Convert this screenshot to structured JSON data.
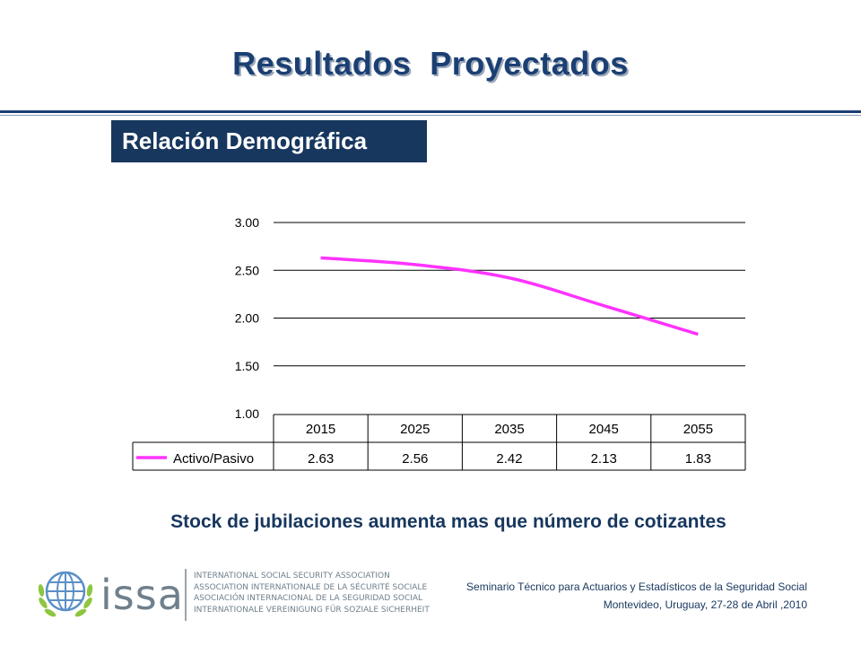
{
  "slide": {
    "title": "Resultados  Proyectados",
    "subtitle": "Relación Demográfica",
    "caption": "Stock de jubilaciones aumenta  mas que número de cotizantes"
  },
  "chart_data": {
    "type": "line",
    "categories": [
      "2015",
      "2025",
      "2035",
      "2045",
      "2055"
    ],
    "series": [
      {
        "name": "Activo/Pasivo",
        "values": [
          2.63,
          2.56,
          2.42,
          2.13,
          1.83
        ],
        "color": "#ff33ff"
      }
    ],
    "value_labels": [
      "2.63",
      "2.56",
      "2.42",
      "2.13",
      "1.83"
    ],
    "y_ticks": [
      "1.00",
      "1.50",
      "2.00",
      "2.50",
      "3.00"
    ],
    "ylim": [
      1.0,
      3.0
    ],
    "grid": true,
    "data_table": true,
    "title": "",
    "xlabel": "",
    "ylabel": ""
  },
  "footer": {
    "logo_text": "issa",
    "org_lines": [
      "INTERNATIONAL SOCIAL SECURITY ASSOCIATION",
      "ASSOCIATION INTERNATIONALE DE LA SÉCURITÉ SOCIALE",
      "ASOCIACIÓN INTERNACIONAL DE LA SEGURIDAD SOCIAL",
      "INTERNATIONALE VEREINIGUNG FÜR SOZIALE SICHERHEIT"
    ],
    "seminar": "Seminario Técnico para Actuarios y Estadísticos de la Seguridad Social",
    "location": "Montevideo, Uruguay, 27-28 de Abril ,2010"
  },
  "colors": {
    "navy": "#17375e",
    "series": "#ff33ff",
    "logo_green": "#8dc63f",
    "logo_blue": "#5b8fc7"
  }
}
